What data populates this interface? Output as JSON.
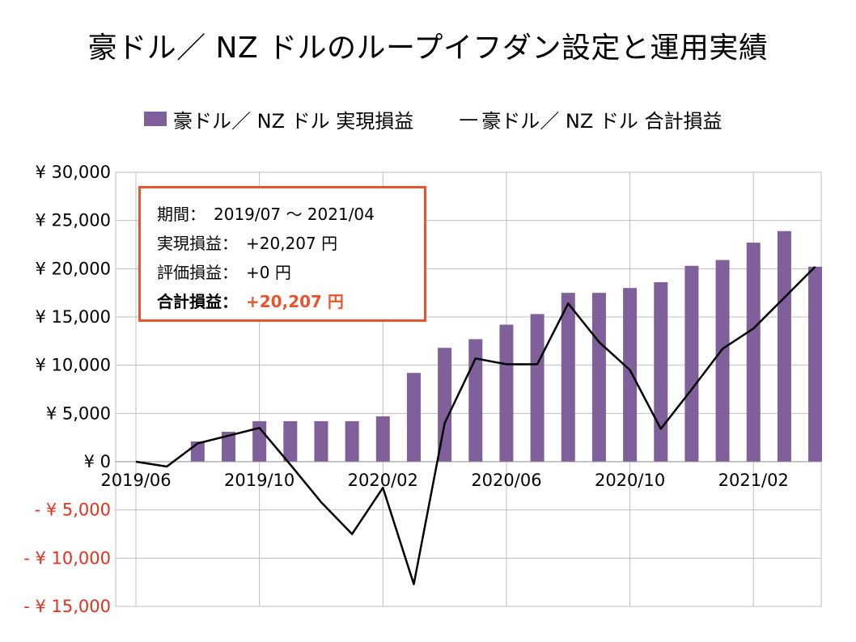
{
  "chart_data": {
    "type": "bar+line",
    "title": "豪ドル／ NZ ドルのループイフダン設定と運用実績",
    "legend": [
      {
        "name": "豪ドル／ NZ ドル 実現損益",
        "kind": "bar"
      },
      {
        "name": "豪ドル／ NZ ドル 合計損益",
        "kind": "line"
      }
    ],
    "legend_line_glyph": "—",
    "x_tick_labels": [
      "2019/06",
      "2019/10",
      "2020/02",
      "2020/06",
      "2020/10",
      "2021/02"
    ],
    "y_tick_labels": [
      "¥ 30,000",
      "¥ 25,000",
      "¥ 20,000",
      "¥ 15,000",
      "¥ 10,000",
      "¥ 5,000",
      "¥ 0",
      "- ¥ 5,000",
      "- ¥ 10,000",
      "- ¥ 15,000"
    ],
    "y_ticks": [
      30000,
      25000,
      20000,
      15000,
      10000,
      5000,
      0,
      -5000,
      -10000,
      -15000
    ],
    "ylim": [
      -15000,
      30000
    ],
    "negative_label_color": "#e8301c",
    "grid": true,
    "legend_position": "top",
    "x": [
      "2019/06",
      "2019/07",
      "2019/08",
      "2019/09",
      "2019/10",
      "2019/11",
      "2019/12",
      "2020/01",
      "2020/02",
      "2020/03",
      "2020/04",
      "2020/05",
      "2020/06",
      "2020/07",
      "2020/08",
      "2020/09",
      "2020/10",
      "2020/11",
      "2020/12",
      "2021/01",
      "2021/02",
      "2021/03",
      "2021/04"
    ],
    "series": [
      {
        "name": "豪ドル／ NZ ドル 実現損益",
        "type": "bar",
        "color": "#7f609b",
        "values": [
          0,
          0,
          2100,
          3100,
          4200,
          4200,
          4200,
          4200,
          4700,
          9200,
          11800,
          12700,
          14200,
          15300,
          17500,
          17500,
          18000,
          18600,
          20300,
          20900,
          22700,
          23900,
          20207
        ]
      },
      {
        "name": "豪ドル／ NZ ドル 合計損益",
        "type": "line",
        "color": "#000000",
        "values": [
          0,
          -500,
          1900,
          2700,
          3500,
          -300,
          -4200,
          -7500,
          -2700,
          -12700,
          4000,
          10700,
          10100,
          10100,
          16400,
          12400,
          9500,
          3400,
          7500,
          11700,
          13800,
          17000,
          20207
        ]
      }
    ]
  },
  "info_box": {
    "period_label": "期間：",
    "period_value": "2019/07 ～ 2021/04",
    "realized_label": "実現損益：",
    "realized_value": "+20,207 円",
    "unrealized_label": "評価損益：",
    "unrealized_value": "+0 円",
    "total_label": "合計損益：",
    "total_value": "+20,207 円",
    "border_color": "#e8552d"
  }
}
